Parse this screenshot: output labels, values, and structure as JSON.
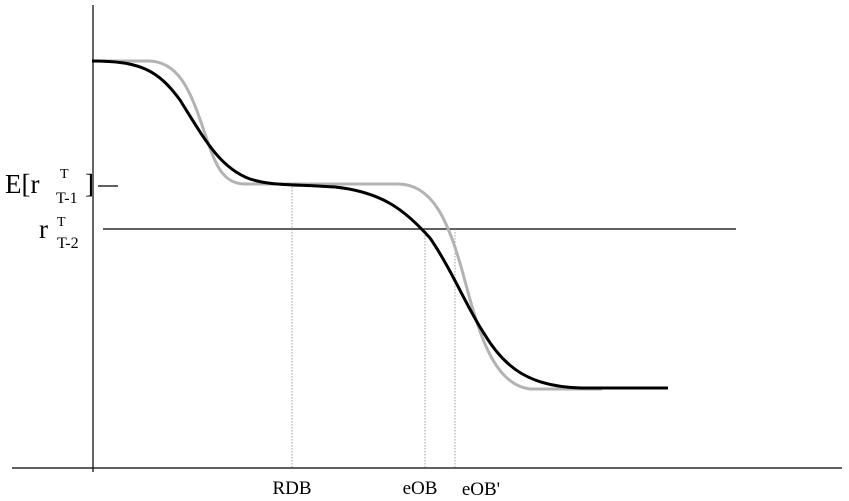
{
  "labels": {
    "y_upper_base": "E[r",
    "y_upper_sup": "T",
    "y_upper_sub": "T-1",
    "y_upper_close": "]",
    "y_lower_base": "r",
    "y_lower_sup": "T",
    "y_lower_sub": "T-2",
    "x_rdb": "RDB",
    "x_eob": "eOB",
    "x_eob_prime": "eOB'"
  },
  "colors": {
    "axis": "#000000",
    "curve_black": "#000000",
    "curve_gray": "#b3b3b3",
    "guide": "#888888"
  }
}
